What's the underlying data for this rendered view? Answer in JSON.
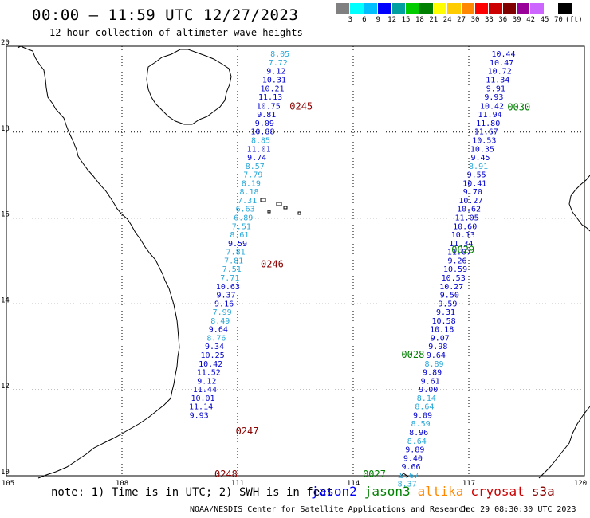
{
  "header": {
    "title": "00:00 — 11:59 UTC 12/27/2023",
    "subtitle": "12 hour collection of altimeter wave heights"
  },
  "legend": {
    "colors": [
      "#808080",
      "#00ffff",
      "#00bfff",
      "#0000ff",
      "#00a0a0",
      "#00cc00",
      "#008000",
      "#ffff00",
      "#ffcc00",
      "#ff8800",
      "#ff0000",
      "#cc0000",
      "#800000",
      "#990099",
      "#cc66ff",
      "#ffffff",
      "#000000"
    ],
    "labels": [
      "3",
      "6",
      "9",
      "12",
      "15",
      "18",
      "21",
      "24",
      "27",
      "30",
      "33",
      "36",
      "39",
      "42",
      "45",
      "70"
    ],
    "unit": "(ft)"
  },
  "map": {
    "lon_ticks": [
      "105",
      "108",
      "111",
      "114",
      "117",
      "120"
    ],
    "lat_ticks": [
      "20",
      "18",
      "16",
      "14",
      "12",
      "10"
    ],
    "lon_range": [
      105,
      120
    ],
    "lat_range": [
      10,
      20
    ],
    "colors": {
      "jason2": "#0000cc",
      "light": "#2aa8d8",
      "jason3": "#008000",
      "cryosat": "#8b0000"
    },
    "passes": [
      {
        "id": "0245",
        "sat": "cryosat",
        "lon": 112.35,
        "lat": 18.62
      },
      {
        "id": "0246",
        "sat": "cryosat",
        "lon": 111.6,
        "lat": 14.94
      },
      {
        "id": "0247",
        "sat": "cryosat",
        "lon": 110.95,
        "lat": 11.06
      },
      {
        "id": "0248",
        "sat": "cryosat",
        "lon": 110.4,
        "lat": 10.06
      },
      {
        "id": "0030",
        "sat": "jason3",
        "lon": 118.0,
        "lat": 18.6
      },
      {
        "id": "0029",
        "sat": "jason3",
        "lon": 116.55,
        "lat": 15.28
      },
      {
        "id": "0028",
        "sat": "jason3",
        "lon": 115.25,
        "lat": 12.84
      },
      {
        "id": "0027",
        "sat": "jason3",
        "lon": 114.25,
        "lat": 10.06
      }
    ],
    "tracks": [
      {
        "name": "track-west",
        "points": [
          {
            "v": "8.05",
            "lon": 112.1,
            "lat": 19.83,
            "c": "light"
          },
          {
            "v": "7.72",
            "lon": 112.05,
            "lat": 19.63,
            "c": "light"
          },
          {
            "v": "9.12",
            "lon": 112.0,
            "lat": 19.43,
            "c": "jason2"
          },
          {
            "v": "10.31",
            "lon": 111.95,
            "lat": 19.23,
            "c": "jason2"
          },
          {
            "v": "10.21",
            "lon": 111.9,
            "lat": 19.03,
            "c": "jason2"
          },
          {
            "v": "11.13",
            "lon": 111.85,
            "lat": 18.83,
            "c": "jason2"
          },
          {
            "v": "10.75",
            "lon": 111.8,
            "lat": 18.62,
            "c": "jason2"
          },
          {
            "v": "9.81",
            "lon": 111.75,
            "lat": 18.42,
            "c": "jason2"
          },
          {
            "v": "9.09",
            "lon": 111.7,
            "lat": 18.22,
            "c": "jason2"
          },
          {
            "v": "10.88",
            "lon": 111.65,
            "lat": 18.02,
            "c": "jason2"
          },
          {
            "v": "8.85",
            "lon": 111.6,
            "lat": 17.82,
            "c": "light"
          },
          {
            "v": "11.01",
            "lon": 111.55,
            "lat": 17.62,
            "c": "jason2"
          },
          {
            "v": "9.74",
            "lon": 111.5,
            "lat": 17.42,
            "c": "jason2"
          },
          {
            "v": "8.57",
            "lon": 111.45,
            "lat": 17.22,
            "c": "light"
          },
          {
            "v": "7.79",
            "lon": 111.4,
            "lat": 17.02,
            "c": "light"
          },
          {
            "v": "8.19",
            "lon": 111.35,
            "lat": 16.82,
            "c": "light"
          },
          {
            "v": "8.18",
            "lon": 111.3,
            "lat": 16.62,
            "c": "light"
          },
          {
            "v": "7.31",
            "lon": 111.25,
            "lat": 16.42,
            "c": "light"
          },
          {
            "v": "6.63",
            "lon": 111.2,
            "lat": 16.22,
            "c": "light"
          },
          {
            "v": "6.89",
            "lon": 111.15,
            "lat": 16.02,
            "c": "light"
          },
          {
            "v": "7.51",
            "lon": 111.1,
            "lat": 15.82,
            "c": "light"
          },
          {
            "v": "8.61",
            "lon": 111.05,
            "lat": 15.62,
            "c": "light"
          },
          {
            "v": "9.59",
            "lon": 111.0,
            "lat": 15.42,
            "c": "jason2"
          },
          {
            "v": "7.81",
            "lon": 110.95,
            "lat": 15.22,
            "c": "light"
          },
          {
            "v": "7.81",
            "lon": 110.9,
            "lat": 15.02,
            "c": "light"
          },
          {
            "v": "7.51",
            "lon": 110.85,
            "lat": 14.82,
            "c": "light"
          },
          {
            "v": "7.71",
            "lon": 110.8,
            "lat": 14.62,
            "c": "light"
          },
          {
            "v": "10.63",
            "lon": 110.75,
            "lat": 14.42,
            "c": "jason2"
          },
          {
            "v": "9.37",
            "lon": 110.7,
            "lat": 14.22,
            "c": "jason2"
          },
          {
            "v": "9.16",
            "lon": 110.65,
            "lat": 14.02,
            "c": "jason2"
          },
          {
            "v": "7.99",
            "lon": 110.6,
            "lat": 13.82,
            "c": "light"
          },
          {
            "v": "8.49",
            "lon": 110.55,
            "lat": 13.62,
            "c": "light"
          },
          {
            "v": "9.64",
            "lon": 110.5,
            "lat": 13.42,
            "c": "jason2"
          },
          {
            "v": "8.76",
            "lon": 110.45,
            "lat": 13.22,
            "c": "light"
          },
          {
            "v": "9.34",
            "lon": 110.4,
            "lat": 13.02,
            "c": "jason2"
          },
          {
            "v": "10.25",
            "lon": 110.35,
            "lat": 12.82,
            "c": "jason2"
          },
          {
            "v": "10.42",
            "lon": 110.3,
            "lat": 12.62,
            "c": "jason2"
          },
          {
            "v": "11.52",
            "lon": 110.25,
            "lat": 12.42,
            "c": "jason2"
          },
          {
            "v": "9.12",
            "lon": 110.2,
            "lat": 12.22,
            "c": "jason2"
          },
          {
            "v": "11.44",
            "lon": 110.15,
            "lat": 12.02,
            "c": "jason2"
          },
          {
            "v": "10.01",
            "lon": 110.1,
            "lat": 11.82,
            "c": "jason2"
          },
          {
            "v": "11.14",
            "lon": 110.05,
            "lat": 11.62,
            "c": "jason2"
          },
          {
            "v": "9.93",
            "lon": 110.0,
            "lat": 11.42,
            "c": "jason2"
          }
        ]
      },
      {
        "name": "track-east",
        "points": [
          {
            "v": "10.44",
            "lon": 117.9,
            "lat": 19.83,
            "c": "jason2"
          },
          {
            "v": "10.47",
            "lon": 117.85,
            "lat": 19.63,
            "c": "jason2"
          },
          {
            "v": "10.72",
            "lon": 117.8,
            "lat": 19.43,
            "c": "jason2"
          },
          {
            "v": "11.34",
            "lon": 117.75,
            "lat": 19.23,
            "c": "jason2"
          },
          {
            "v": "9.91",
            "lon": 117.7,
            "lat": 19.03,
            "c": "jason2"
          },
          {
            "v": "9.93",
            "lon": 117.65,
            "lat": 18.83,
            "c": "jason2"
          },
          {
            "v": "10.42",
            "lon": 117.6,
            "lat": 18.62,
            "c": "jason2"
          },
          {
            "v": "11.94",
            "lon": 117.55,
            "lat": 18.42,
            "c": "jason2"
          },
          {
            "v": "11.80",
            "lon": 117.5,
            "lat": 18.22,
            "c": "jason2"
          },
          {
            "v": "11.67",
            "lon": 117.45,
            "lat": 18.02,
            "c": "jason2"
          },
          {
            "v": "10.53",
            "lon": 117.4,
            "lat": 17.82,
            "c": "jason2"
          },
          {
            "v": "10.35",
            "lon": 117.35,
            "lat": 17.62,
            "c": "jason2"
          },
          {
            "v": "9.45",
            "lon": 117.3,
            "lat": 17.42,
            "c": "jason2"
          },
          {
            "v": "8.91",
            "lon": 117.25,
            "lat": 17.22,
            "c": "light"
          },
          {
            "v": "9.55",
            "lon": 117.2,
            "lat": 17.02,
            "c": "jason2"
          },
          {
            "v": "10.41",
            "lon": 117.15,
            "lat": 16.82,
            "c": "jason2"
          },
          {
            "v": "9.70",
            "lon": 117.1,
            "lat": 16.62,
            "c": "jason2"
          },
          {
            "v": "10.27",
            "lon": 117.05,
            "lat": 16.42,
            "c": "jason2"
          },
          {
            "v": "10.62",
            "lon": 117.0,
            "lat": 16.22,
            "c": "jason2"
          },
          {
            "v": "11.05",
            "lon": 116.95,
            "lat": 16.02,
            "c": "jason2"
          },
          {
            "v": "10.60",
            "lon": 116.9,
            "lat": 15.82,
            "c": "jason2"
          },
          {
            "v": "10.13",
            "lon": 116.85,
            "lat": 15.62,
            "c": "jason2"
          },
          {
            "v": "11.34",
            "lon": 116.8,
            "lat": 15.42,
            "c": "jason2"
          },
          {
            "v": "11.07",
            "lon": 116.75,
            "lat": 15.22,
            "c": "jason2"
          },
          {
            "v": "9.26",
            "lon": 116.7,
            "lat": 15.02,
            "c": "jason2"
          },
          {
            "v": "10.59",
            "lon": 116.65,
            "lat": 14.82,
            "c": "jason2"
          },
          {
            "v": "10.53",
            "lon": 116.6,
            "lat": 14.62,
            "c": "jason2"
          },
          {
            "v": "10.27",
            "lon": 116.55,
            "lat": 14.42,
            "c": "jason2"
          },
          {
            "v": "9.50",
            "lon": 116.5,
            "lat": 14.22,
            "c": "jason2"
          },
          {
            "v": "9.59",
            "lon": 116.45,
            "lat": 14.02,
            "c": "jason2"
          },
          {
            "v": "9.31",
            "lon": 116.4,
            "lat": 13.82,
            "c": "jason2"
          },
          {
            "v": "10.58",
            "lon": 116.35,
            "lat": 13.62,
            "c": "jason2"
          },
          {
            "v": "10.18",
            "lon": 116.3,
            "lat": 13.42,
            "c": "jason2"
          },
          {
            "v": "9.07",
            "lon": 116.25,
            "lat": 13.22,
            "c": "jason2"
          },
          {
            "v": "9.98",
            "lon": 116.2,
            "lat": 13.02,
            "c": "jason2"
          },
          {
            "v": "9.64",
            "lon": 116.15,
            "lat": 12.82,
            "c": "jason2"
          },
          {
            "v": "8.89",
            "lon": 116.1,
            "lat": 12.62,
            "c": "light"
          },
          {
            "v": "9.89",
            "lon": 116.05,
            "lat": 12.42,
            "c": "jason2"
          },
          {
            "v": "9.61",
            "lon": 116.0,
            "lat": 12.22,
            "c": "jason2"
          },
          {
            "v": "9.00",
            "lon": 115.95,
            "lat": 12.02,
            "c": "jason2"
          },
          {
            "v": "8.14",
            "lon": 115.9,
            "lat": 11.82,
            "c": "light"
          },
          {
            "v": "8.64",
            "lon": 115.85,
            "lat": 11.62,
            "c": "light"
          },
          {
            "v": "9.09",
            "lon": 115.8,
            "lat": 11.42,
            "c": "jason2"
          },
          {
            "v": "8.59",
            "lon": 115.75,
            "lat": 11.22,
            "c": "light"
          },
          {
            "v": "8.96",
            "lon": 115.7,
            "lat": 11.02,
            "c": "jason2"
          },
          {
            "v": "8.64",
            "lon": 115.65,
            "lat": 10.82,
            "c": "light"
          },
          {
            "v": "9.89",
            "lon": 115.6,
            "lat": 10.62,
            "c": "jason2"
          },
          {
            "v": "9.40",
            "lon": 115.55,
            "lat": 10.42,
            "c": "jason2"
          },
          {
            "v": "9.66",
            "lon": 115.5,
            "lat": 10.22,
            "c": "jason2"
          },
          {
            "v": "8.67",
            "lon": 115.45,
            "lat": 10.02,
            "c": "light"
          },
          {
            "v": "8.37",
            "lon": 115.4,
            "lat": 9.82,
            "c": "light"
          }
        ]
      }
    ]
  },
  "footer": {
    "note": "note: 1) Time is in UTC; 2) SWH is in feet",
    "satellites": [
      {
        "name": "jason2",
        "color": "#0000ff"
      },
      {
        "name": "jason3",
        "color": "#008000"
      },
      {
        "name": "altika",
        "color": "#ff8800"
      },
      {
        "name": "cryosat",
        "color": "#cc0000"
      },
      {
        "name": "s3a",
        "color": "#8b0000"
      }
    ],
    "credit": "NOAA/NESDIS Center for Satellite Applications and Research",
    "timestamp": "Dec 29 08:30:30 UTC 2023"
  }
}
